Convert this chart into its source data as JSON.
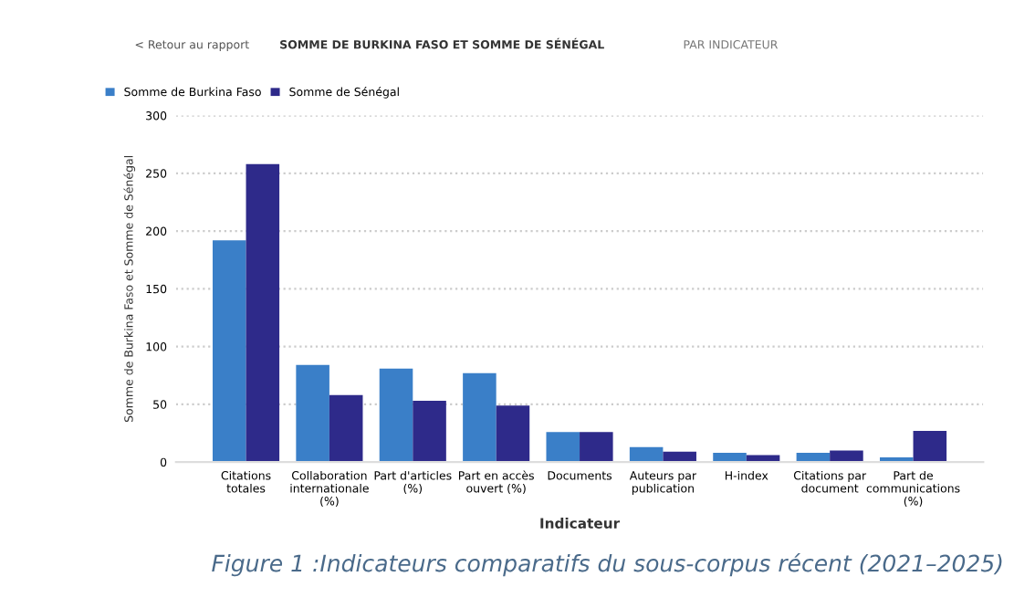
{
  "chart_data": {
    "type": "bar",
    "title": "SOMME DE BURKINA FASO ET SOMME DE SÉNÉGAL",
    "subtitle": "PAR INDICATEUR",
    "xlabel": "Indicateur",
    "ylabel": "Somme de Burkina Faso et Somme de Sénégal",
    "categories": [
      "Citations totales",
      "Collaboration internationale (%)",
      "Part d'articles (%)",
      "Part en accès ouvert (%)",
      "Documents",
      "Auteurs par publication",
      "H-index",
      "Citations par document",
      "Part de communications (%)"
    ],
    "series": [
      {
        "name": "Somme de Burkina Faso",
        "color": "#3a7fc8",
        "values": [
          192,
          84,
          81,
          77,
          26,
          13,
          8,
          8,
          4
        ]
      },
      {
        "name": "Somme de Sénégal",
        "color": "#2e2a8a",
        "values": [
          258,
          58,
          53,
          49,
          26,
          9,
          6,
          10,
          27
        ]
      }
    ],
    "ylim": [
      0,
      300
    ],
    "yticks": [
      0,
      50,
      100,
      150,
      200,
      250,
      300
    ],
    "grid": "y",
    "legend": "top left",
    "annotations": [
      "< Retour au rapport",
      "Figure 1 :Indicateurs comparatifs du sous-corpus récent (2021–2025)"
    ]
  }
}
